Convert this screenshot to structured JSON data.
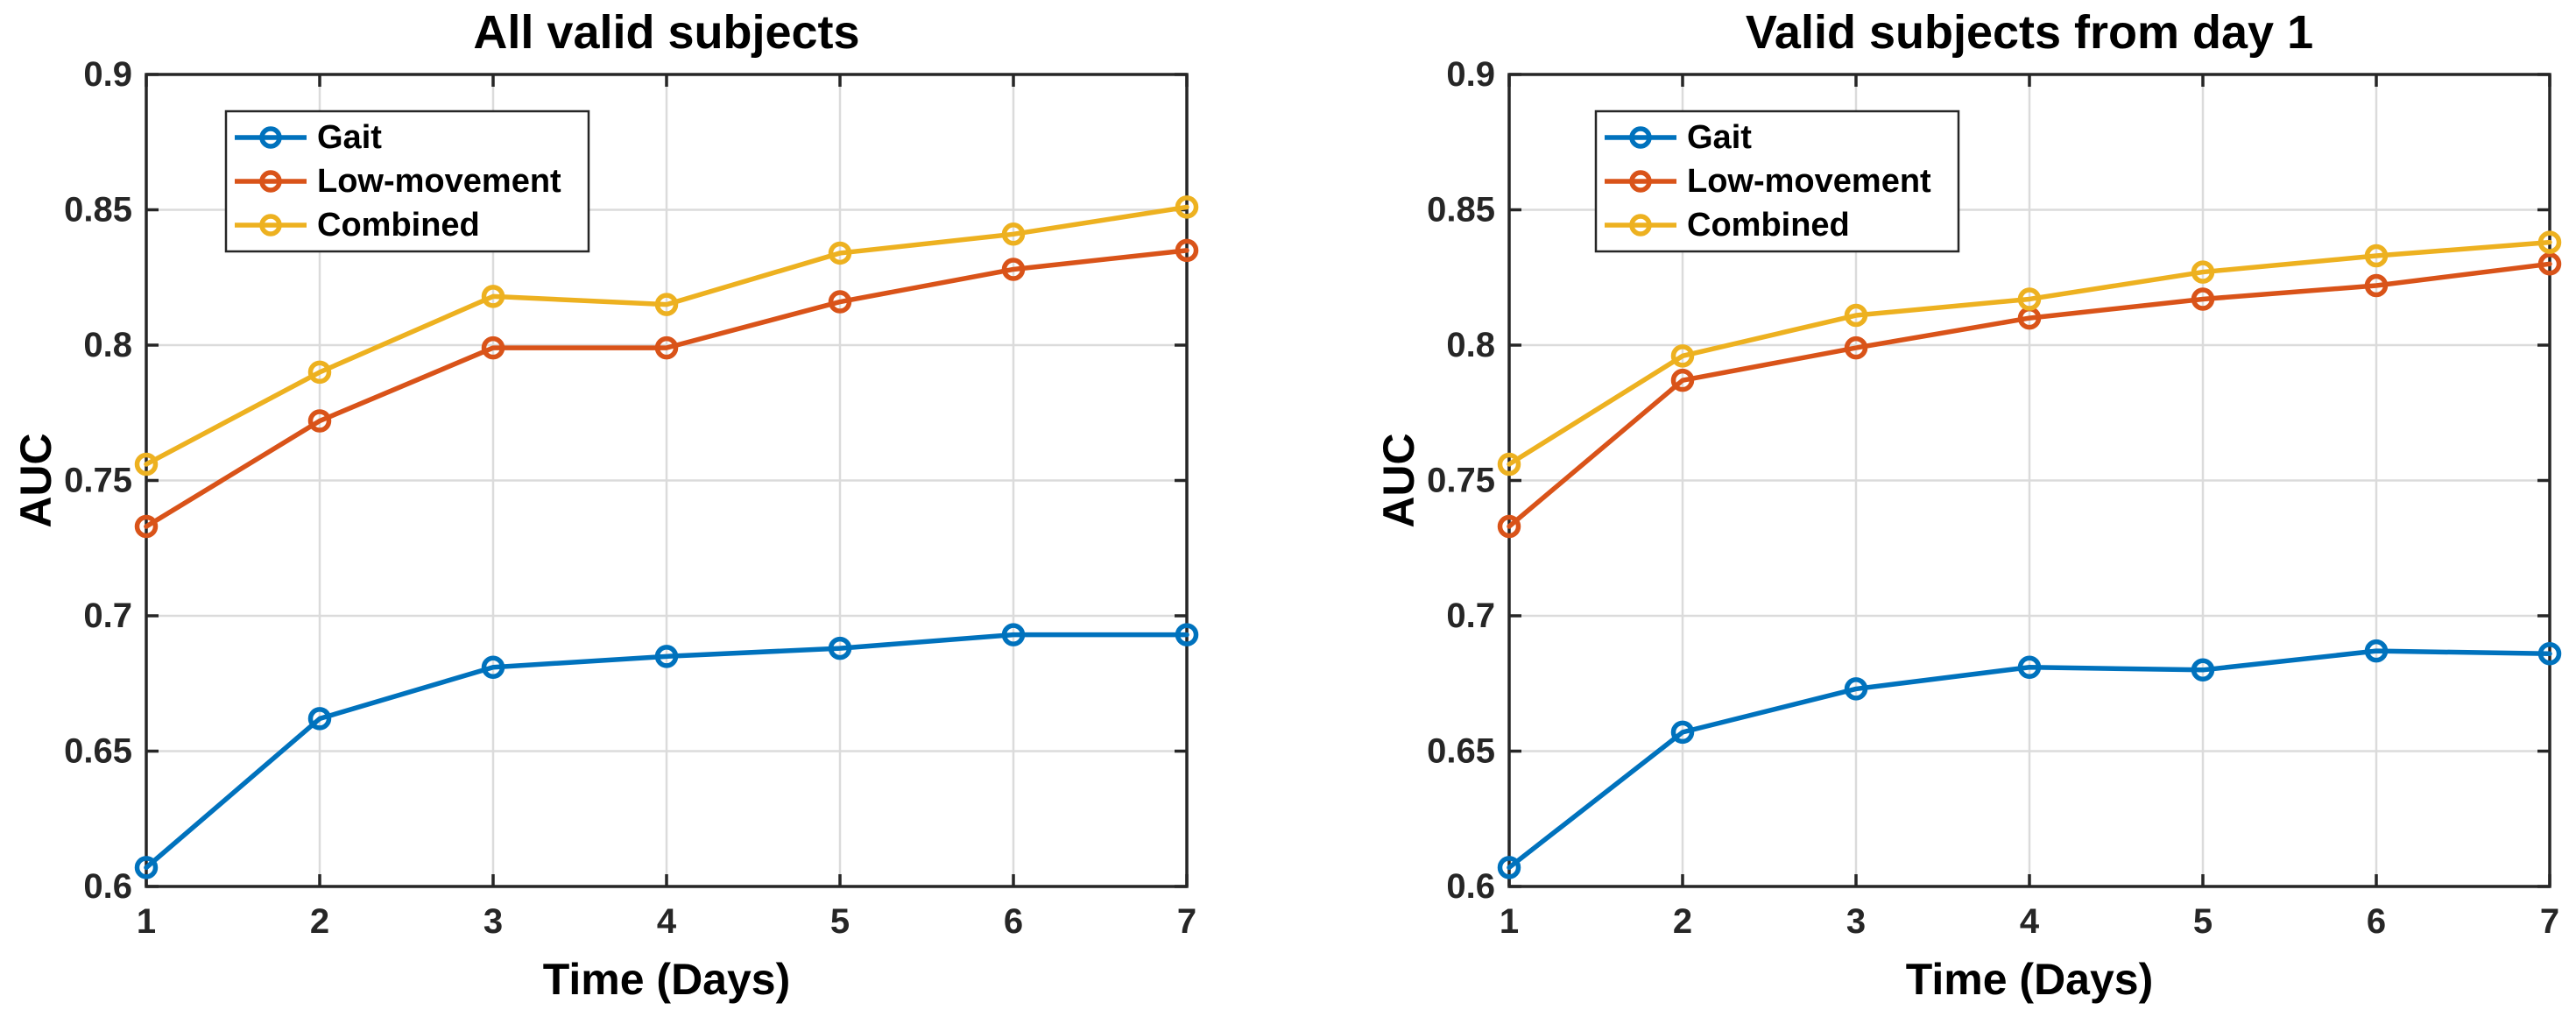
{
  "figure": {
    "background": "#ffffff",
    "text_color": "#000000",
    "tick_text_color": "#262626",
    "axis_color": "#262626",
    "grid_color": "#dbdbdb",
    "legend_background": "#ffffff"
  },
  "chart_data": [
    {
      "type": "line",
      "title": "All valid subjects",
      "xlabel": "Time (Days)",
      "ylabel": "AUC",
      "x": [
        1,
        2,
        3,
        4,
        5,
        6,
        7
      ],
      "xlim": [
        1,
        7
      ],
      "ylim": [
        0.6,
        0.9
      ],
      "xtick_labels": [
        "1",
        "2",
        "3",
        "4",
        "5",
        "6",
        "7"
      ],
      "ytick_values": [
        0.6,
        0.65,
        0.7,
        0.75,
        0.8,
        0.85,
        0.9
      ],
      "ytick_labels": [
        "0.6",
        "0.65",
        "0.7",
        "0.75",
        "0.8",
        "0.85",
        "0.9"
      ],
      "grid": true,
      "legend_position": "upper-left",
      "series": [
        {
          "name": "Gait",
          "color": "#0072BD",
          "marker": "circle",
          "values": [
            0.607,
            0.662,
            0.681,
            0.685,
            0.688,
            0.693,
            0.693
          ]
        },
        {
          "name": "Low-movement",
          "color": "#D95319",
          "marker": "circle",
          "values": [
            0.733,
            0.772,
            0.799,
            0.799,
            0.816,
            0.828,
            0.835
          ]
        },
        {
          "name": "Combined",
          "color": "#EDB120",
          "marker": "circle",
          "values": [
            0.756,
            0.79,
            0.818,
            0.815,
            0.834,
            0.841,
            0.851
          ]
        }
      ]
    },
    {
      "type": "line",
      "title": "Valid subjects from day 1",
      "xlabel": "Time (Days)",
      "ylabel": "AUC",
      "x": [
        1,
        2,
        3,
        4,
        5,
        6,
        7
      ],
      "xlim": [
        1,
        7
      ],
      "ylim": [
        0.6,
        0.9
      ],
      "xtick_labels": [
        "1",
        "2",
        "3",
        "4",
        "5",
        "6",
        "7"
      ],
      "ytick_values": [
        0.6,
        0.65,
        0.7,
        0.75,
        0.8,
        0.85,
        0.9
      ],
      "ytick_labels": [
        "0.6",
        "0.65",
        "0.7",
        "0.75",
        "0.8",
        "0.85",
        "0.9"
      ],
      "grid": true,
      "legend_position": "upper-left",
      "series": [
        {
          "name": "Gait",
          "color": "#0072BD",
          "marker": "circle",
          "values": [
            0.607,
            0.657,
            0.673,
            0.681,
            0.68,
            0.687,
            0.686
          ]
        },
        {
          "name": "Low-movement",
          "color": "#D95319",
          "marker": "circle",
          "values": [
            0.733,
            0.787,
            0.799,
            0.81,
            0.817,
            0.822,
            0.83
          ]
        },
        {
          "name": "Combined",
          "color": "#EDB120",
          "marker": "circle",
          "values": [
            0.756,
            0.796,
            0.811,
            0.817,
            0.827,
            0.833,
            0.838
          ]
        }
      ]
    }
  ]
}
